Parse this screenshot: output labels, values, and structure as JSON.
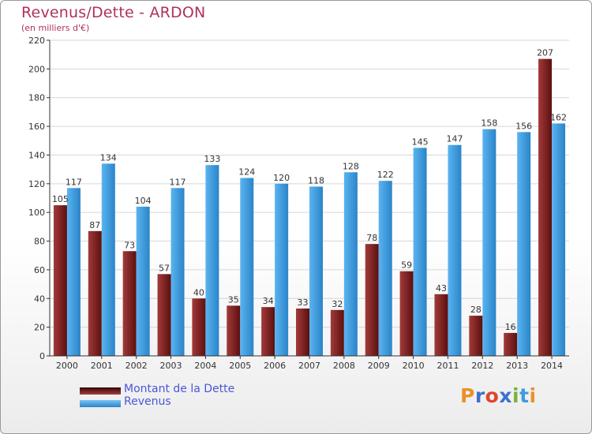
{
  "title": "Revenus/Dette - ARDON",
  "subtitle": "(en milliers d'€)",
  "logo_text": "Proxiti",
  "colors": {
    "dette": "#7a1c1c",
    "revenus": "#3d9be0",
    "title": "#b03060",
    "legend_text": "#4a56d8"
  },
  "chart_data": {
    "type": "bar",
    "title": "Revenus/Dette - ARDON",
    "ylabel": "(en milliers d'€)",
    "ylim": [
      0,
      220
    ],
    "yticks": [
      0,
      20,
      40,
      60,
      80,
      100,
      120,
      140,
      160,
      180,
      200,
      220
    ],
    "grid": true,
    "legend_position": "bottom-left",
    "categories": [
      "2000",
      "2001",
      "2002",
      "2003",
      "2004",
      "2005",
      "2006",
      "2007",
      "2008",
      "2009",
      "2010",
      "2011",
      "2012",
      "2013",
      "2014"
    ],
    "series": [
      {
        "name": "Montant de la Dette",
        "color": "#7a1c1c",
        "values": [
          105,
          87,
          73,
          57,
          40,
          35,
          34,
          33,
          32,
          78,
          59,
          43,
          28,
          16,
          207
        ]
      },
      {
        "name": "Revenus",
        "color": "#3d9be0",
        "values": [
          117,
          134,
          104,
          117,
          133,
          124,
          120,
          118,
          128,
          122,
          145,
          147,
          158,
          156,
          162
        ]
      }
    ]
  }
}
